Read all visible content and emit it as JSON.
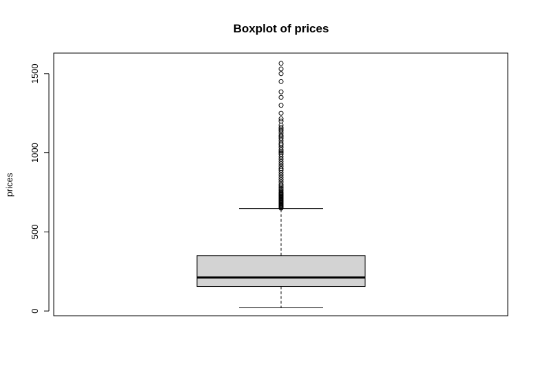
{
  "chart_data": {
    "type": "boxplot",
    "title": "Boxplot of prices",
    "ylabel": "prices",
    "xlabel": "",
    "ylim": [
      -30,
      1630
    ],
    "yticks": [
      0,
      500,
      1000,
      1500
    ],
    "ytick_labels": [
      "0",
      "500",
      "1000",
      "1500"
    ],
    "grid": false,
    "box_fill": "#d3d3d3",
    "stats": {
      "lower_whisker": 20,
      "q1": 155,
      "median": 212,
      "q3": 350,
      "upper_whisker": 647
    },
    "outliers": [
      650,
      655,
      660,
      665,
      670,
      675,
      680,
      685,
      690,
      695,
      700,
      705,
      710,
      715,
      720,
      725,
      730,
      735,
      740,
      745,
      750,
      760,
      770,
      780,
      790,
      800,
      815,
      830,
      845,
      860,
      875,
      890,
      900,
      915,
      930,
      945,
      960,
      975,
      990,
      1000,
      1010,
      1020,
      1035,
      1050,
      1060,
      1075,
      1090,
      1100,
      1110,
      1125,
      1140,
      1150,
      1160,
      1175,
      1200,
      1215,
      1250,
      1300,
      1350,
      1385,
      1450,
      1500,
      1530,
      1565
    ]
  }
}
